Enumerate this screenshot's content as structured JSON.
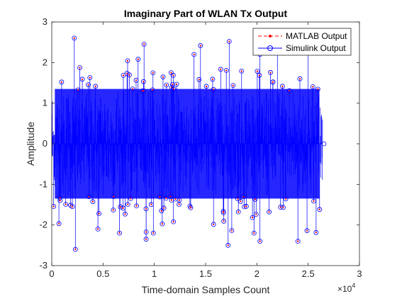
{
  "chart_data": {
    "type": "stem",
    "title": "Imaginary Part of WLAN Tx Output",
    "xlabel": "Time-domain Samples Count",
    "ylabel": "Amplitude",
    "xlim": [
      0,
      30000
    ],
    "ylim": [
      -3,
      3
    ],
    "x_tick_labels": [
      "0",
      "0.5",
      "1",
      "1.5",
      "2",
      "2.5",
      "3"
    ],
    "x_exponent_label": "×10",
    "x_exponent_power": "4",
    "y_ticks": [
      3,
      2,
      1,
      0,
      -1,
      -2,
      -3
    ],
    "y_tick_labels": [
      "3",
      "2",
      "1",
      "0",
      "-1",
      "-2",
      "-3"
    ],
    "legend_position": "top-right",
    "data_x_range": [
      1,
      26400
    ],
    "series": [
      {
        "name": "MATLAB Output",
        "color": "#ff0000",
        "line": "dashed",
        "marker": "dot"
      },
      {
        "name": "Simulink Output",
        "color": "#0000ff",
        "line": "solid",
        "marker": "circle"
      }
    ],
    "notable_peaks": [
      {
        "x": 2200,
        "y": 2.6
      },
      {
        "x": 2300,
        "y": -2.6
      },
      {
        "x": 4500,
        "y": -2.1
      },
      {
        "x": 9000,
        "y": 2.45
      },
      {
        "x": 9200,
        "y": -2.35
      },
      {
        "x": 14500,
        "y": 2.42
      },
      {
        "x": 17300,
        "y": 2.52
      },
      {
        "x": 17200,
        "y": -2.5
      },
      {
        "x": 20300,
        "y": -2.4
      },
      {
        "x": 22000,
        "y": 2.3
      },
      {
        "x": 24000,
        "y": -2.4
      },
      {
        "x": 25000,
        "y": 2.3
      }
    ]
  }
}
